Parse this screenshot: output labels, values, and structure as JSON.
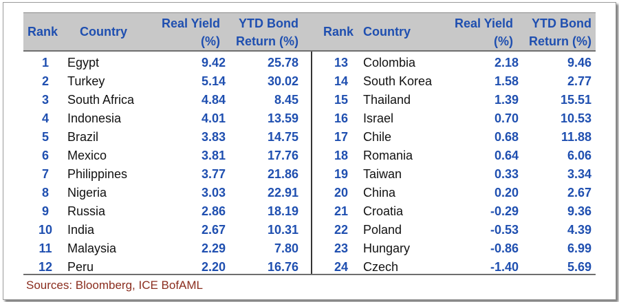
{
  "headers": {
    "rank": "Rank",
    "country": "Country",
    "real_yield": [
      "Real Yield",
      "(%)"
    ],
    "ytd_return": [
      "YTD Bond",
      "Return (%)"
    ]
  },
  "left_rows": [
    {
      "rank": "1",
      "country": "Egypt",
      "real_yield": "9.42",
      "ytd": "25.78"
    },
    {
      "rank": "2",
      "country": "Turkey",
      "real_yield": "5.14",
      "ytd": "30.02"
    },
    {
      "rank": "3",
      "country": "South Africa",
      "real_yield": "4.84",
      "ytd": "8.45"
    },
    {
      "rank": "4",
      "country": "Indonesia",
      "real_yield": "4.01",
      "ytd": "13.59"
    },
    {
      "rank": "5",
      "country": "Brazil",
      "real_yield": "3.83",
      "ytd": "14.75"
    },
    {
      "rank": "6",
      "country": "Mexico",
      "real_yield": "3.81",
      "ytd": "17.76"
    },
    {
      "rank": "7",
      "country": "Philippines",
      "real_yield": "3.77",
      "ytd": "21.86"
    },
    {
      "rank": "8",
      "country": "Nigeria",
      "real_yield": "3.03",
      "ytd": "22.91"
    },
    {
      "rank": "9",
      "country": "Russia",
      "real_yield": "2.86",
      "ytd": "18.19"
    },
    {
      "rank": "10",
      "country": "India",
      "real_yield": "2.67",
      "ytd": "10.31"
    },
    {
      "rank": "11",
      "country": "Malaysia",
      "real_yield": "2.29",
      "ytd": "7.80"
    },
    {
      "rank": "12",
      "country": "Peru",
      "real_yield": "2.20",
      "ytd": "16.76"
    }
  ],
  "right_rows": [
    {
      "rank": "13",
      "country": "Colombia",
      "real_yield": "2.18",
      "ytd": "9.46"
    },
    {
      "rank": "14",
      "country": "South Korea",
      "real_yield": "1.58",
      "ytd": "2.77"
    },
    {
      "rank": "15",
      "country": "Thailand",
      "real_yield": "1.39",
      "ytd": "15.51"
    },
    {
      "rank": "16",
      "country": "Israel",
      "real_yield": "0.70",
      "ytd": "10.53"
    },
    {
      "rank": "17",
      "country": "Chile",
      "real_yield": "0.68",
      "ytd": "11.88"
    },
    {
      "rank": "18",
      "country": "Romania",
      "real_yield": "0.64",
      "ytd": "6.06"
    },
    {
      "rank": "19",
      "country": "Taiwan",
      "real_yield": "0.33",
      "ytd": "3.34"
    },
    {
      "rank": "20",
      "country": "China",
      "real_yield": "0.20",
      "ytd": "2.67"
    },
    {
      "rank": "21",
      "country": "Croatia",
      "real_yield": "-0.29",
      "ytd": "9.36"
    },
    {
      "rank": "22",
      "country": "Poland",
      "real_yield": "-0.53",
      "ytd": "4.39"
    },
    {
      "rank": "23",
      "country": "Hungary",
      "real_yield": "-0.86",
      "ytd": "6.99"
    },
    {
      "rank": "24",
      "country": "Czech",
      "real_yield": "-1.40",
      "ytd": "5.69"
    }
  ],
  "source": "Sources: Bloomberg, ICE BofAML",
  "colors": {
    "header_text": "#1f4fb0",
    "header_bg": "#c8c8c8",
    "source_text": "#8a2d1e"
  }
}
